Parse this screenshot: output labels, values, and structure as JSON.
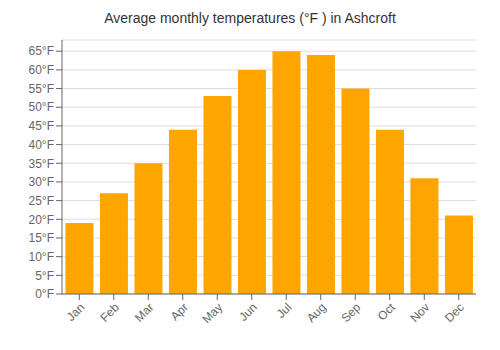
{
  "chart_data": {
    "type": "bar",
    "title": "Average monthly temperatures (°F ) in Ashcroft",
    "categories": [
      "Jan",
      "Feb",
      "Mar",
      "Apr",
      "May",
      "Jun",
      "Jul",
      "Aug",
      "Sep",
      "Oct",
      "Nov",
      "Dec"
    ],
    "values": [
      19,
      27,
      35,
      44,
      53,
      60,
      65,
      64,
      55,
      44,
      31,
      21
    ],
    "color": "#FFA500",
    "ylim": [
      0,
      68
    ],
    "yticks": [
      {
        "value": 0,
        "label": "0°F"
      },
      {
        "value": 5,
        "label": "5°F"
      },
      {
        "value": 10,
        "label": "10°F"
      },
      {
        "value": 15,
        "label": "15°F"
      },
      {
        "value": 20,
        "label": "20°F"
      },
      {
        "value": 25,
        "label": "25°F"
      },
      {
        "value": 30,
        "label": "30°F"
      },
      {
        "value": 35,
        "label": "35°F"
      },
      {
        "value": 40,
        "label": "40°F"
      },
      {
        "value": 45,
        "label": "45°F"
      },
      {
        "value": 50,
        "label": "50°F"
      },
      {
        "value": 55,
        "label": "55°F"
      },
      {
        "value": 60,
        "label": "60°F"
      },
      {
        "value": 65,
        "label": "65°F"
      }
    ],
    "grid": true
  }
}
